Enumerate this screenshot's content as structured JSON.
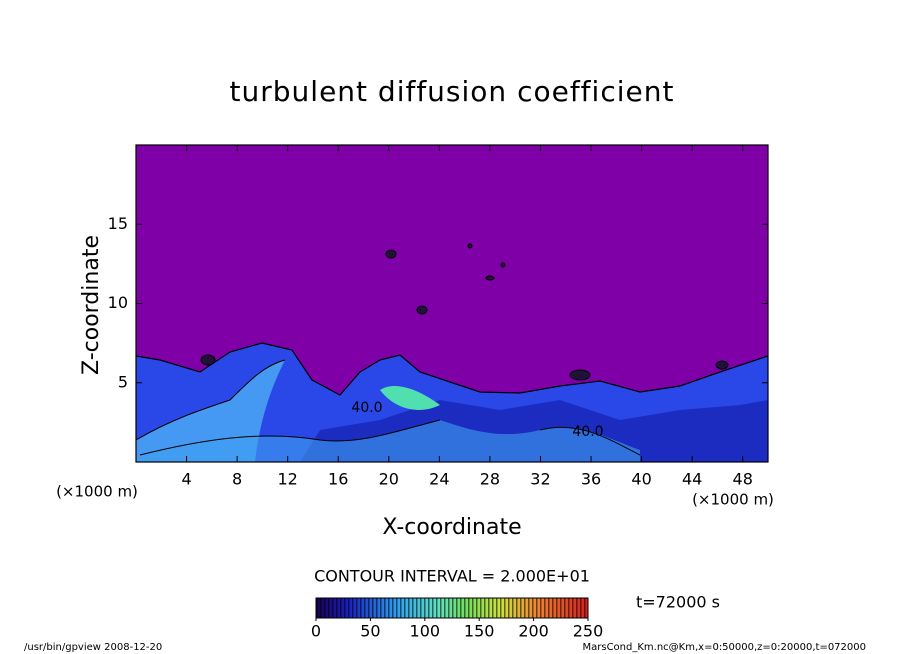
{
  "chart_data": {
    "type": "contour",
    "title": "turbulent diffusion coefficient",
    "xlabel": "X-coordinate",
    "ylabel": "Z-coordinate",
    "x_unit": "(×1000 m)",
    "xlim": [
      0,
      50
    ],
    "ylim": [
      0,
      20
    ],
    "xticks": [
      4,
      8,
      12,
      16,
      20,
      24,
      28,
      32,
      36,
      40,
      44,
      48
    ],
    "yticks": [
      5,
      10,
      15
    ],
    "contour_labels": [
      "40.0",
      "40.0"
    ],
    "contour_interval_label": "CONTOUR INTERVAL = 2.000E+01",
    "colorbar": {
      "clim": [
        0,
        250
      ],
      "ticks": [
        0,
        50,
        100,
        150,
        200,
        250
      ]
    },
    "time_label": "t=72000 s",
    "footer_left": "/usr/bin/gpview   2008-12-20",
    "footer_right": "MarsCond_Km.nc@Km,x=0:50000,z=0:20000,t=072000"
  }
}
